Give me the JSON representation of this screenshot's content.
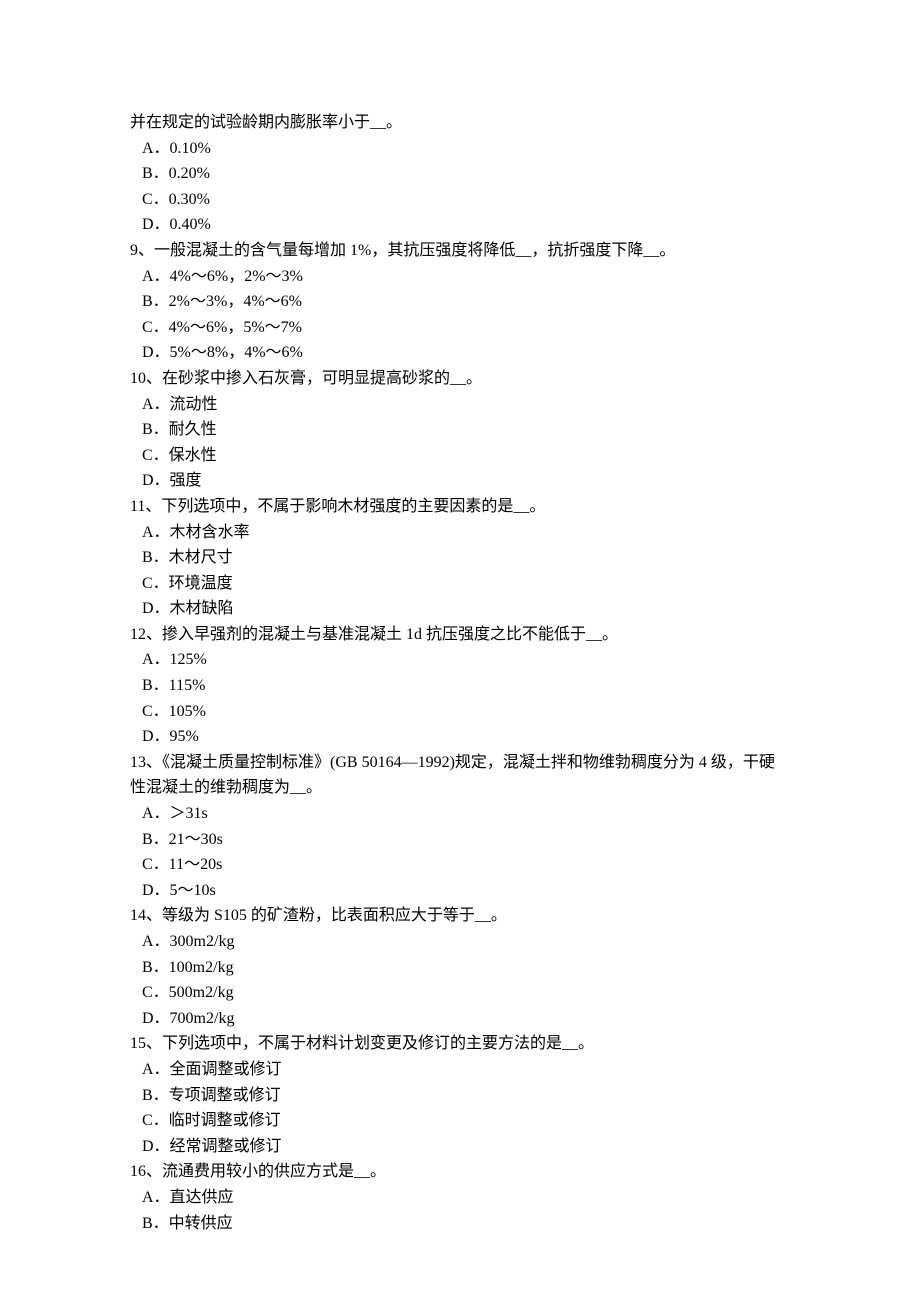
{
  "continuation": "并在规定的试验龄期内膨胀率小于__。",
  "continuation_options": [
    "A．0.10%",
    "B．0.20%",
    "C．0.30%",
    "D．0.40%"
  ],
  "questions": [
    {
      "number": "9、",
      "text": "一般混凝土的含气量每增加 1%，其抗压强度将降低__，抗折强度下降__。",
      "options": [
        "A．4%～6%，2%～3%",
        "B．2%～3%，4%～6%",
        "C．4%～6%，5%～7%",
        "D．5%～8%，4%～6%"
      ]
    },
    {
      "number": "10、",
      "text": "在砂浆中掺入石灰膏，可明显提高砂浆的__。",
      "options": [
        "A．流动性",
        "B．耐久性",
        "C．保水性",
        "D．强度"
      ]
    },
    {
      "number": "11、",
      "text": "下列选项中，不属于影响木材强度的主要因素的是__。",
      "options": [
        "A．木材含水率",
        "B．木材尺寸",
        "C．环境温度",
        "D．木材缺陷"
      ]
    },
    {
      "number": "12、",
      "text": "掺入早强剂的混凝土与基准混凝土 1d 抗压强度之比不能低于__。",
      "options": [
        "A．125%",
        "B．115%",
        "C．105%",
        "D．95%"
      ]
    },
    {
      "number": "13、",
      "text": "《混凝土质量控制标准》(GB 50164—1992)规定，混凝土拌和物维勃稠度分为 4 级，干硬性混凝土的维勃稠度为__。",
      "options": [
        "A．＞31s",
        "B．21～30s",
        "C．11～20s",
        "D．5～10s"
      ]
    },
    {
      "number": "14、",
      "text": "等级为 S105 的矿渣粉，比表面积应大于等于__。",
      "options": [
        "A．300m2/kg",
        "B．100m2/kg",
        "C．500m2/kg",
        "D．700m2/kg"
      ]
    },
    {
      "number": "15、",
      "text": "下列选项中，不属于材料计划变更及修订的主要方法的是__。",
      "options": [
        "A．全面调整或修订",
        "B．专项调整或修订",
        "C．临时调整或修订",
        "D．经常调整或修订"
      ]
    },
    {
      "number": "16、",
      "text": "流通费用较小的供应方式是__。",
      "options": [
        "A．直达供应",
        "B．中转供应"
      ]
    }
  ]
}
